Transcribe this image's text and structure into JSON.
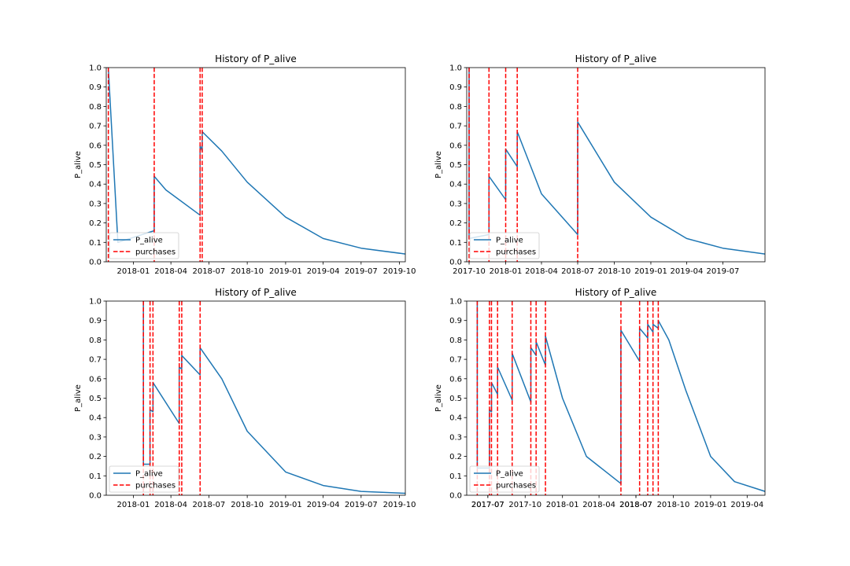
{
  "chart_data": [
    {
      "type": "line",
      "title": "History of P_alive",
      "xlabel": "",
      "ylabel": "P_alive",
      "x_range": [
        "2017-10-28",
        "2019-10-15"
      ],
      "ylim": [
        0,
        1
      ],
      "yticks": [
        0.0,
        0.1,
        0.2,
        0.3,
        0.4,
        0.5,
        0.6,
        0.7,
        0.8,
        0.9,
        1.0
      ],
      "xticks": [
        "2018-01",
        "2018-04",
        "2018-07",
        "2018-10",
        "2019-01",
        "2019-04",
        "2019-07",
        "2019-10"
      ],
      "grid": false,
      "legend": {
        "position": "lower-left",
        "entries": [
          "P_alive",
          "purchases"
        ]
      },
      "series": [
        {
          "name": "P_alive",
          "color": "#1f77b4",
          "points": [
            [
              "2017-11-02",
              1.0
            ],
            [
              "2017-11-25",
              0.1
            ],
            [
              "2018-02-20",
              0.16
            ],
            [
              "2018-02-20",
              0.44
            ],
            [
              "2018-03-20",
              0.37
            ],
            [
              "2018-06-10",
              0.24
            ],
            [
              "2018-06-10",
              0.6
            ],
            [
              "2018-06-15",
              0.57
            ],
            [
              "2018-06-15",
              0.67
            ],
            [
              "2018-08-01",
              0.57
            ],
            [
              "2018-10-01",
              0.41
            ],
            [
              "2019-01-01",
              0.23
            ],
            [
              "2019-04-01",
              0.12
            ],
            [
              "2019-07-01",
              0.07
            ],
            [
              "2019-10-15",
              0.04
            ]
          ]
        },
        {
          "name": "purchases",
          "type": "vline",
          "color": "#ff0000",
          "dates": [
            "2017-11-02",
            "2018-02-20",
            "2018-06-10",
            "2018-06-15"
          ]
        }
      ]
    },
    {
      "type": "line",
      "title": "History of P_alive",
      "xlabel": "",
      "ylabel": "P_alive",
      "x_range": [
        "2017-09-25",
        "2019-10-15"
      ],
      "ylim": [
        0,
        1
      ],
      "yticks": [
        0.0,
        0.1,
        0.2,
        0.3,
        0.4,
        0.5,
        0.6,
        0.7,
        0.8,
        0.9,
        1.0
      ],
      "xticks": [
        "2017-10",
        "2018-01",
        "2018-04",
        "2018-07",
        "2018-10",
        "2019-01",
        "2019-04",
        "2019-07"
      ],
      "grid": false,
      "legend": {
        "position": "lower-left",
        "entries": [
          "P_alive",
          "purchases"
        ]
      },
      "series": [
        {
          "name": "P_alive",
          "color": "#1f77b4",
          "points": [
            [
              "2017-10-01",
              1.0
            ],
            [
              "2017-10-01",
              0.12
            ],
            [
              "2017-11-20",
              0.14
            ],
            [
              "2017-11-20",
              0.44
            ],
            [
              "2018-01-01",
              0.32
            ],
            [
              "2018-01-01",
              0.58
            ],
            [
              "2018-01-30",
              0.49
            ],
            [
              "2018-01-30",
              0.67
            ],
            [
              "2018-04-01",
              0.35
            ],
            [
              "2018-07-01",
              0.14
            ],
            [
              "2018-07-01",
              0.72
            ],
            [
              "2018-10-01",
              0.41
            ],
            [
              "2019-01-01",
              0.23
            ],
            [
              "2019-04-01",
              0.12
            ],
            [
              "2019-07-01",
              0.07
            ],
            [
              "2019-10-15",
              0.04
            ]
          ]
        },
        {
          "name": "purchases",
          "type": "vline",
          "color": "#ff0000",
          "dates": [
            "2017-10-01",
            "2017-11-20",
            "2018-01-01",
            "2018-01-30",
            "2018-07-01"
          ]
        }
      ]
    },
    {
      "type": "line",
      "title": "History of P_alive",
      "xlabel": "",
      "ylabel": "P_alive",
      "x_range": [
        "2017-10-28",
        "2019-10-15"
      ],
      "ylim": [
        0,
        1
      ],
      "yticks": [
        0.0,
        0.1,
        0.2,
        0.3,
        0.4,
        0.5,
        0.6,
        0.7,
        0.8,
        0.9,
        1.0
      ],
      "xticks": [
        "2018-01",
        "2018-04",
        "2018-07",
        "2018-10",
        "2019-01",
        "2019-04",
        "2019-07",
        "2019-10"
      ],
      "grid": false,
      "legend": {
        "position": "lower-left",
        "entries": [
          "P_alive",
          "purchases"
        ]
      },
      "series": [
        {
          "name": "P_alive",
          "color": "#1f77b4",
          "points": [
            [
              "2018-01-25",
              1.0
            ],
            [
              "2018-01-25",
              0.16
            ],
            [
              "2018-02-10",
              0.16
            ],
            [
              "2018-02-10",
              0.44
            ],
            [
              "2018-02-17",
              0.43
            ],
            [
              "2018-02-17",
              0.58
            ],
            [
              "2018-04-21",
              0.37
            ],
            [
              "2018-04-21",
              0.66
            ],
            [
              "2018-04-27",
              0.65
            ],
            [
              "2018-04-27",
              0.72
            ],
            [
              "2018-06-10",
              0.62
            ],
            [
              "2018-06-10",
              0.76
            ],
            [
              "2018-08-01",
              0.6
            ],
            [
              "2018-10-01",
              0.33
            ],
            [
              "2019-01-01",
              0.12
            ],
            [
              "2019-04-01",
              0.05
            ],
            [
              "2019-07-01",
              0.02
            ],
            [
              "2019-10-15",
              0.01
            ]
          ]
        },
        {
          "name": "purchases",
          "type": "vline",
          "color": "#ff0000",
          "dates": [
            "2018-01-25",
            "2018-02-10",
            "2018-02-17",
            "2018-04-21",
            "2018-04-27",
            "2018-06-10"
          ]
        }
      ]
    },
    {
      "type": "line",
      "title": "History of P_alive",
      "xlabel": "",
      "ylabel": "P_alive",
      "x_range": [
        "2017-05-10",
        "2019-05-15"
      ],
      "ylim": [
        0,
        1
      ],
      "yticks": [
        0.0,
        0.1,
        0.2,
        0.3,
        0.4,
        0.5,
        0.6,
        0.7,
        0.8,
        0.9,
        1.0
      ],
      "xticks": [
        "2017-07",
        "2017-07",
        "2017-10",
        "2018-01",
        "2018-04",
        "2018-07",
        "2018-07",
        "2018-10",
        "2019-01",
        "2019-04"
      ],
      "grid": false,
      "legend": {
        "position": "lower-left",
        "entries": [
          "P_alive",
          "purchases"
        ]
      },
      "series": [
        {
          "name": "P_alive",
          "color": "#1f77b4",
          "points": [
            [
              "2017-06-05",
              1.0
            ],
            [
              "2017-06-05",
              0.14
            ],
            [
              "2017-07-05",
              0.14
            ],
            [
              "2017-07-05",
              0.44
            ],
            [
              "2017-07-10",
              0.43
            ],
            [
              "2017-07-10",
              0.58
            ],
            [
              "2017-07-25",
              0.52
            ],
            [
              "2017-07-25",
              0.66
            ],
            [
              "2017-08-30",
              0.49
            ],
            [
              "2017-08-30",
              0.73
            ],
            [
              "2017-10-15",
              0.48
            ],
            [
              "2017-10-15",
              0.76
            ],
            [
              "2017-10-28",
              0.72
            ],
            [
              "2017-10-28",
              0.79
            ],
            [
              "2017-11-20",
              0.67
            ],
            [
              "2017-11-20",
              0.82
            ],
            [
              "2018-01-01",
              0.5
            ],
            [
              "2018-03-01",
              0.2
            ],
            [
              "2018-05-25",
              0.06
            ],
            [
              "2018-05-25",
              0.85
            ],
            [
              "2018-07-10",
              0.69
            ],
            [
              "2018-07-10",
              0.86
            ],
            [
              "2018-07-30",
              0.81
            ],
            [
              "2018-07-30",
              0.88
            ],
            [
              "2018-08-12",
              0.84
            ],
            [
              "2018-08-12",
              0.88
            ],
            [
              "2018-08-25",
              0.86
            ],
            [
              "2018-08-25",
              0.9
            ],
            [
              "2018-09-20",
              0.8
            ],
            [
              "2018-11-01",
              0.54
            ],
            [
              "2019-01-01",
              0.2
            ],
            [
              "2019-03-01",
              0.07
            ],
            [
              "2019-05-15",
              0.02
            ]
          ]
        },
        {
          "name": "purchases",
          "type": "vline",
          "color": "#ff0000",
          "dates": [
            "2017-06-05",
            "2017-07-05",
            "2017-07-10",
            "2017-07-25",
            "2017-08-30",
            "2017-10-15",
            "2017-10-28",
            "2017-11-20",
            "2018-05-25",
            "2018-07-10",
            "2018-07-30",
            "2018-08-12",
            "2018-08-25"
          ]
        }
      ]
    }
  ]
}
